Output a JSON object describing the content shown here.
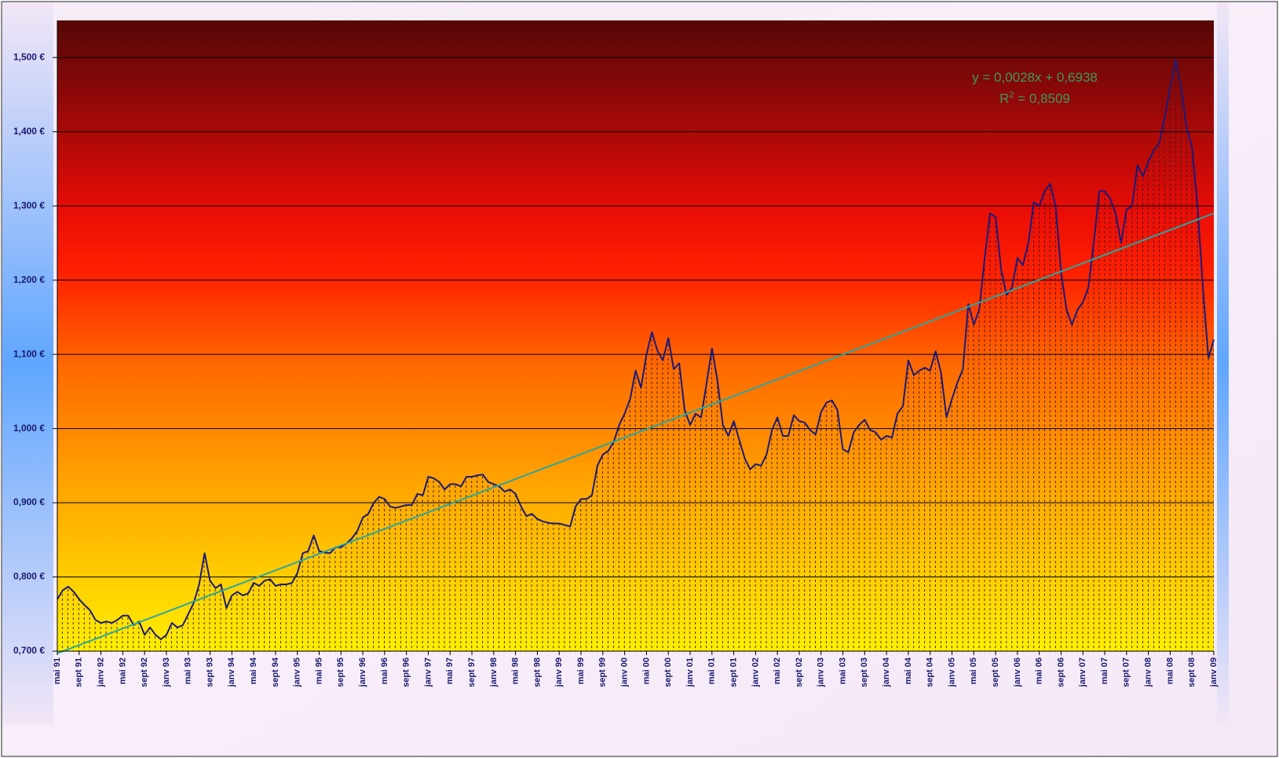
{
  "chart_data": {
    "type": "area",
    "categories": [
      "mai 91",
      null,
      null,
      null,
      "sept 91",
      null,
      null,
      null,
      "janv 92",
      null,
      null,
      null,
      "mai 92",
      null,
      null,
      null,
      "sept 92",
      null,
      null,
      null,
      "janv 93",
      null,
      null,
      null,
      "mai 93",
      null,
      null,
      null,
      "sept 93",
      null,
      null,
      null,
      "janv 94",
      null,
      null,
      null,
      "mai 94",
      null,
      null,
      null,
      "sept 94",
      null,
      null,
      null,
      "janv 95",
      null,
      null,
      null,
      "mai 95",
      null,
      null,
      null,
      "sept 95",
      null,
      null,
      null,
      "janv 96",
      null,
      null,
      null,
      "mai 96",
      null,
      null,
      null,
      "sept 96",
      null,
      null,
      null,
      "janv 97",
      null,
      null,
      null,
      "mai 97",
      null,
      null,
      null,
      "sept 97",
      null,
      null,
      null,
      "janv 98",
      null,
      null,
      null,
      "mai 98",
      null,
      null,
      null,
      "sept 98",
      null,
      null,
      null,
      "janv 99",
      null,
      null,
      null,
      "mai 99",
      null,
      null,
      null,
      "sept 99",
      null,
      null,
      null,
      "janv 00",
      null,
      null,
      null,
      "mai 00",
      null,
      null,
      null,
      "sept 00",
      null,
      null,
      null,
      "janv 01",
      null,
      null,
      null,
      "mai 01",
      null,
      null,
      null,
      "sept 01",
      null,
      null,
      null,
      "janv 02",
      null,
      null,
      null,
      "mai 02",
      null,
      null,
      null,
      "sept 02",
      null,
      null,
      null,
      "janv 03",
      null,
      null,
      null,
      "mai 03",
      null,
      null,
      null,
      "sept 03",
      null,
      null,
      null,
      "janv 04",
      null,
      null,
      null,
      "mai 04",
      null,
      null,
      null,
      "sept 04",
      null,
      null,
      null,
      "janv 05",
      null,
      null,
      null,
      "mai 05",
      null,
      null,
      null,
      "sept 05",
      null,
      null,
      null,
      "janv 06",
      null,
      null,
      null,
      "mai 06",
      null,
      null,
      null,
      "sept 06",
      null,
      null,
      null,
      "janv 07",
      null,
      null,
      null,
      "mai 07",
      null,
      null,
      null,
      "sept 07",
      null,
      null,
      null,
      "janv 08",
      null,
      null,
      null,
      "mai 08",
      null,
      null,
      null,
      "sept 08",
      null,
      null,
      null,
      "janv 09"
    ],
    "series": [
      {
        "color": "#1a1a7a",
        "values": [
          0.77,
          0.782,
          0.787,
          0.78,
          0.77,
          0.762,
          0.755,
          0.742,
          0.738,
          0.74,
          0.738,
          0.742,
          0.748,
          0.748,
          0.735,
          0.74,
          0.722,
          0.732,
          0.722,
          0.716,
          0.722,
          0.738,
          0.732,
          0.735,
          0.75,
          0.765,
          0.79,
          0.832,
          0.795,
          0.785,
          0.79,
          0.758,
          0.775,
          0.78,
          0.775,
          0.778,
          0.792,
          0.788,
          0.795,
          0.797,
          0.788,
          0.79,
          0.79,
          0.792,
          0.805,
          0.832,
          0.835,
          0.856,
          0.835,
          0.833,
          0.832,
          0.84,
          0.84,
          0.845,
          0.852,
          0.862,
          0.88,
          0.885,
          0.9,
          0.908,
          0.905,
          0.895,
          0.893,
          0.895,
          0.897,
          0.897,
          0.912,
          0.91,
          0.935,
          0.933,
          0.928,
          0.918,
          0.925,
          0.925,
          0.922,
          0.935,
          0.935,
          0.937,
          0.938,
          0.928,
          0.925,
          0.922,
          0.915,
          0.918,
          0.912,
          0.895,
          0.882,
          0.885,
          0.878,
          0.875,
          0.873,
          0.872,
          0.872,
          0.87,
          0.868,
          0.895,
          0.905,
          0.905,
          0.91,
          0.95,
          0.965,
          0.97,
          0.982,
          1.005,
          1.02,
          1.04,
          1.078,
          1.055,
          1.1,
          1.13,
          1.105,
          1.092,
          1.122,
          1.08,
          1.088,
          1.025,
          1.005,
          1.02,
          1.015,
          1.06,
          1.108,
          1.065,
          1.005,
          0.99,
          1.01,
          0.985,
          0.96,
          0.945,
          0.952,
          0.95,
          0.965,
          0.998,
          1.015,
          0.99,
          0.99,
          1.018,
          1.01,
          1.008,
          0.998,
          0.992,
          1.022,
          1.035,
          1.038,
          1.025,
          0.972,
          0.968,
          0.995,
          1.005,
          1.012,
          0.998,
          0.995,
          0.985,
          0.99,
          0.988,
          1.02,
          1.03,
          1.092,
          1.072,
          1.078,
          1.082,
          1.078,
          1.104,
          1.075,
          1.015,
          1.04,
          1.062,
          1.08,
          1.168,
          1.14,
          1.16,
          1.23,
          1.29,
          1.285,
          1.215,
          1.18,
          1.19,
          1.23,
          1.22,
          1.25,
          1.305,
          1.3,
          1.32,
          1.33,
          1.3,
          1.21,
          1.16,
          1.14,
          1.16,
          1.17,
          1.19,
          1.25,
          1.32,
          1.32,
          1.31,
          1.29,
          1.25,
          1.295,
          1.3,
          1.355,
          1.34,
          1.36,
          1.375,
          1.385,
          1.42,
          1.46,
          1.497,
          1.46,
          1.405,
          1.38,
          1.3,
          1.19,
          1.095,
          1.12
        ]
      }
    ],
    "trendline": {
      "color": "#2aa6a0",
      "start": 0.697,
      "end": 1.29
    },
    "equation": "y = 0,0028x + 0,6938",
    "r2_symbol": "R",
    "r2_sup": "2",
    "r2_value": " = 0,8509",
    "ylim": [
      0.7,
      1.55
    ],
    "yticks": [
      {
        "value": 0.7,
        "label": "0,700 €"
      },
      {
        "value": 0.8,
        "label": "0,800 €"
      },
      {
        "value": 0.9,
        "label": "0,900 €"
      },
      {
        "value": 1.0,
        "label": "1,000 €"
      },
      {
        "value": 1.1,
        "label": "1,100 €"
      },
      {
        "value": 1.2,
        "label": "1,200 €"
      },
      {
        "value": 1.3,
        "label": "1,300 €"
      },
      {
        "value": 1.4,
        "label": "1,400 €"
      },
      {
        "value": 1.5,
        "label": "1,500 €"
      }
    ],
    "grid": true
  }
}
